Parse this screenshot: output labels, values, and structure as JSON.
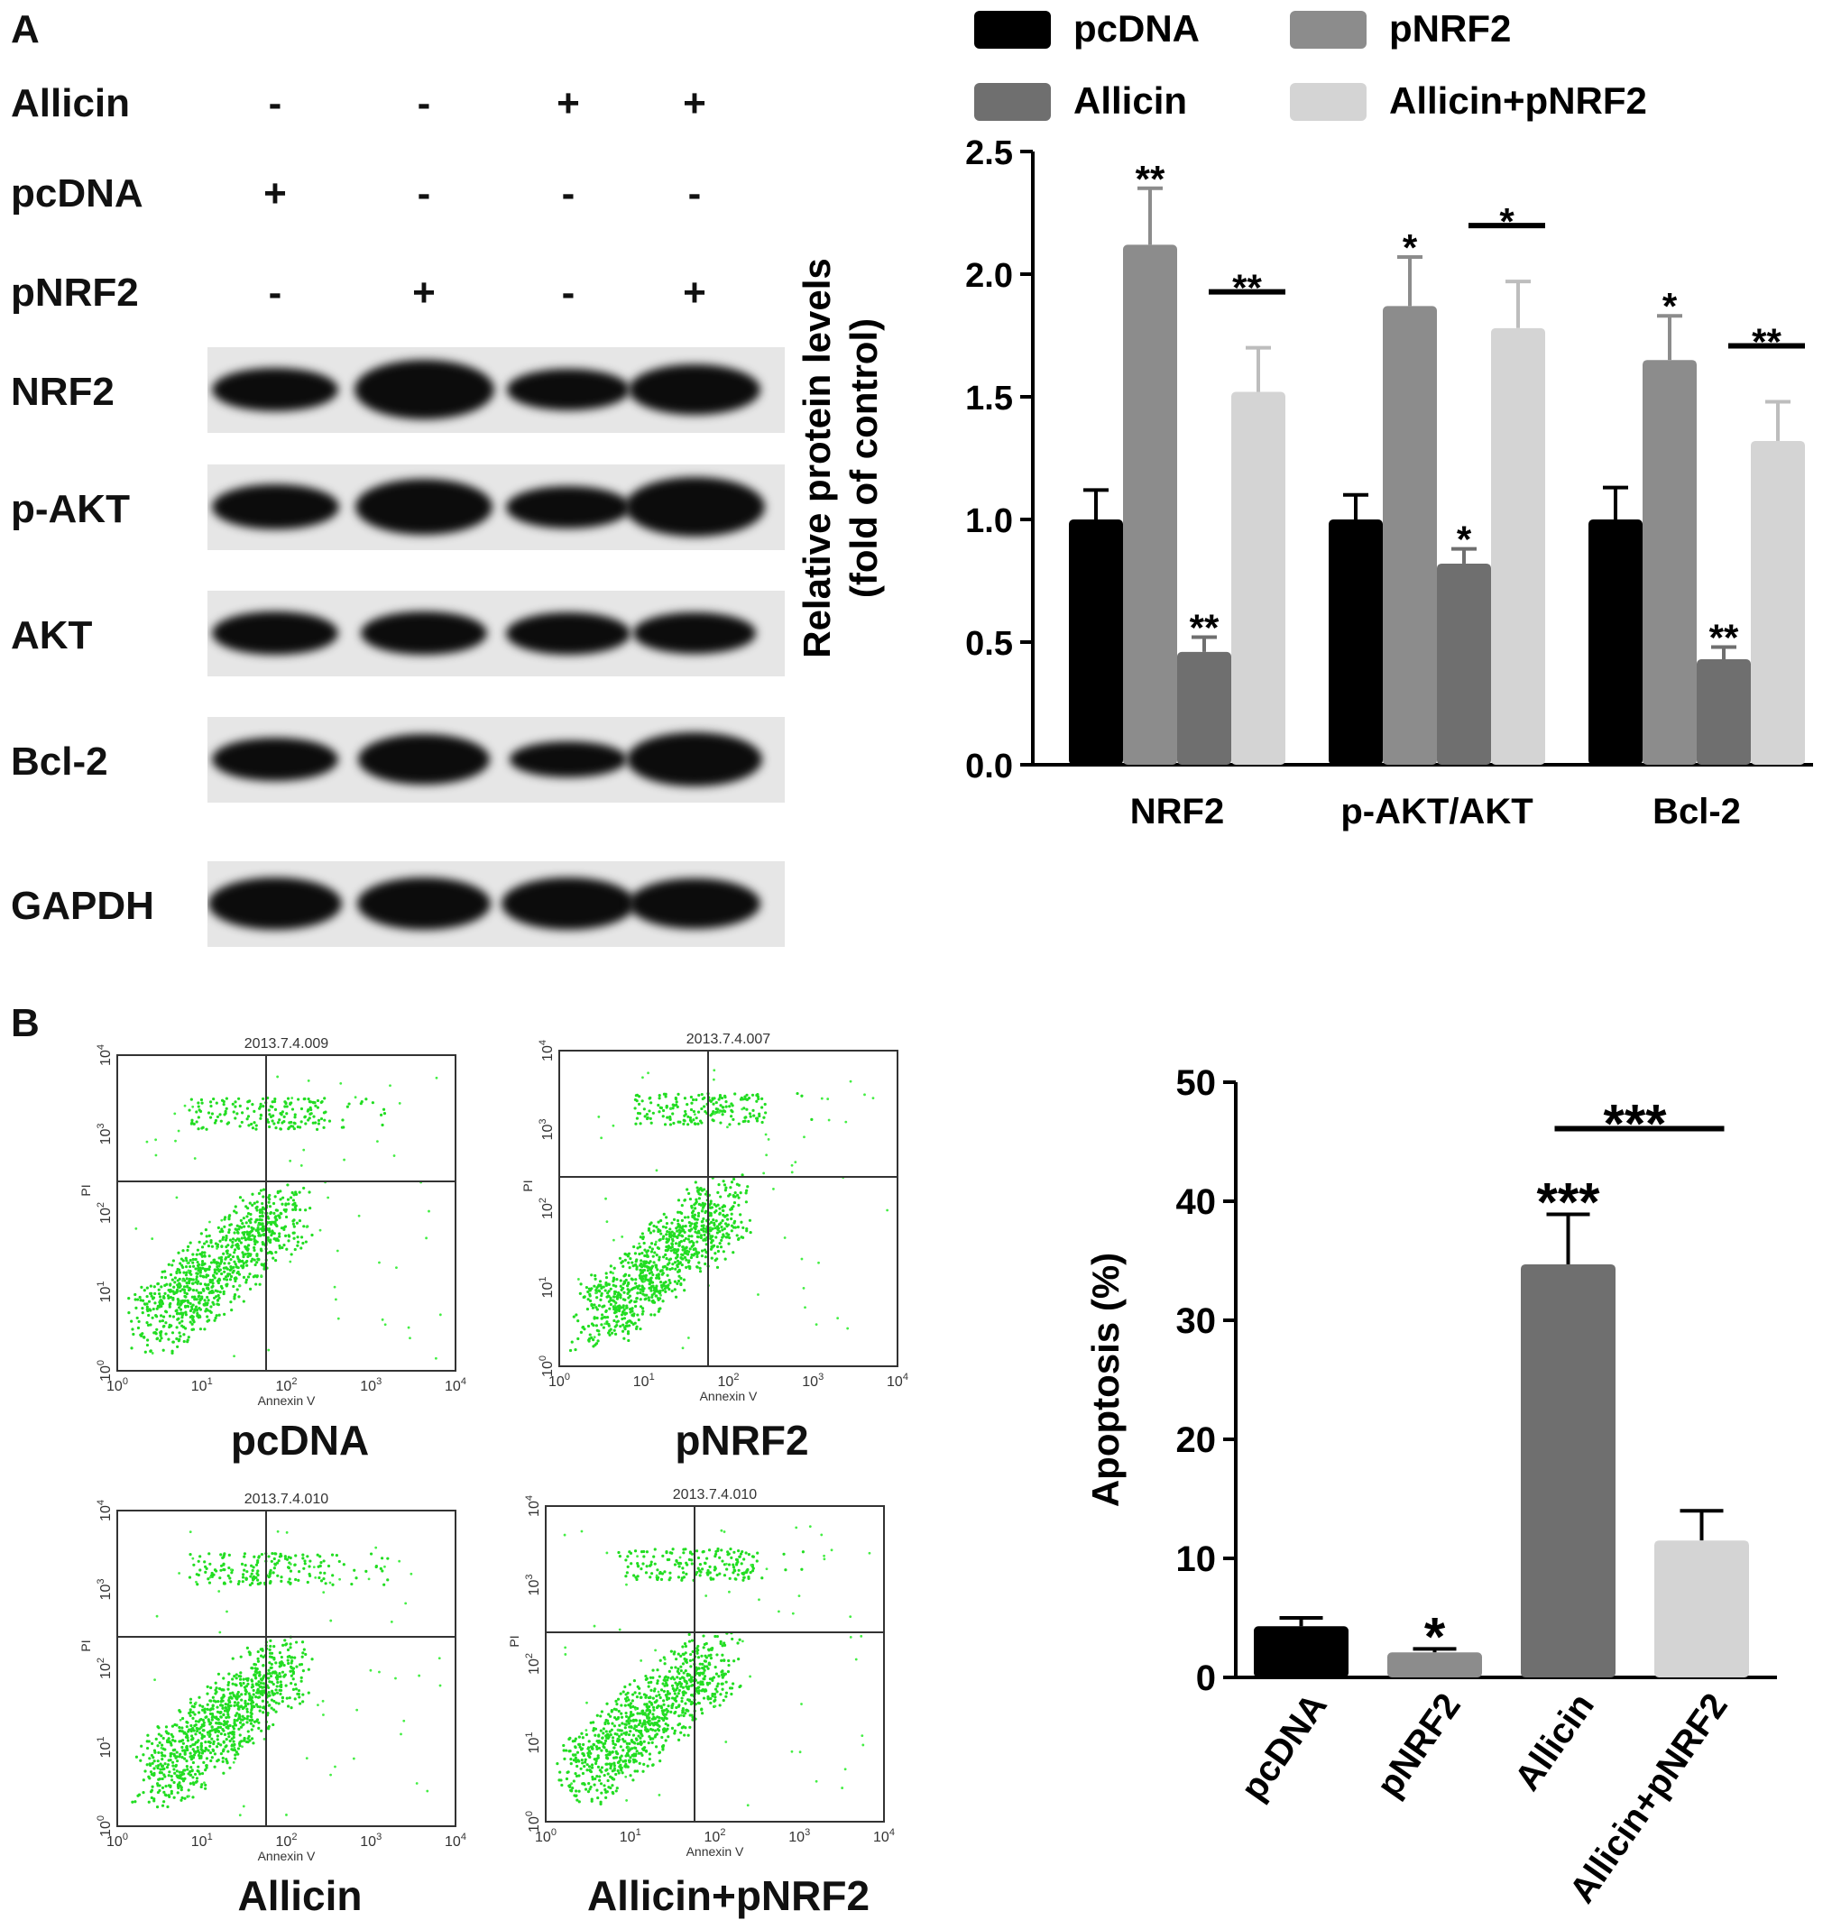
{
  "panel_a": {
    "letter": "A",
    "treatment_rows": [
      {
        "label": "Allicin",
        "signs": [
          "-",
          "-",
          "+",
          "+"
        ]
      },
      {
        "label": "pcDNA",
        "signs": [
          "+",
          "-",
          "-",
          "-"
        ]
      },
      {
        "label": "pNRF2",
        "signs": [
          "-",
          "+",
          "-",
          "+"
        ]
      }
    ],
    "blot_rows": [
      {
        "label": "NRF2",
        "intensity": [
          0.55,
          1.0,
          0.45,
          0.75
        ]
      },
      {
        "label": "p-AKT",
        "intensity": [
          0.6,
          0.9,
          0.5,
          1.0
        ]
      },
      {
        "label": "AKT",
        "intensity": [
          0.55,
          0.55,
          0.5,
          0.45
        ]
      },
      {
        "label": "Bcl-2",
        "intensity": [
          0.55,
          0.75,
          0.3,
          0.85
        ]
      },
      {
        "label": "GAPDH",
        "intensity": [
          0.8,
          0.8,
          0.8,
          0.75
        ]
      }
    ]
  },
  "panel_b": {
    "letter": "B",
    "flow_plots": [
      {
        "label": "pcDNA",
        "file": "2013.7.4.009"
      },
      {
        "label": "pNRF2",
        "file": "2013.7.4.007"
      },
      {
        "label": "Allicin",
        "file": "2013.7.4.010"
      },
      {
        "label": "Allicin+pNRF2",
        "file": "2013.7.4.010"
      }
    ],
    "flow_axis": {
      "xlabel": "Annexin V",
      "ylabel": "PI",
      "ticks": [
        "10",
        "10",
        "10",
        "10",
        "10"
      ],
      "exponents": [
        "0",
        "1",
        "2",
        "3",
        "4"
      ]
    }
  },
  "chart_data": [
    {
      "type": "bar",
      "ylabel": "Relative protein levels\n(fold of control)",
      "ylabel_lines": [
        "Relative protein levels",
        "(fold of control)"
      ],
      "categories": [
        "NRF2",
        "p-AKT/AKT",
        "Bcl-2"
      ],
      "ylim": [
        0,
        2.5
      ],
      "yticks": [
        "0.0",
        "0.5",
        "1.0",
        "1.5",
        "2.0",
        "2.5"
      ],
      "legend_position": "top",
      "series": [
        {
          "name": "pcDNA",
          "color": "#000000",
          "values": [
            1.0,
            1.0,
            1.0
          ],
          "errors": [
            0.12,
            0.1,
            0.13
          ]
        },
        {
          "name": "pNRF2",
          "color": "#8c8c8c",
          "values": [
            2.12,
            1.87,
            1.65
          ],
          "errors": [
            0.23,
            0.2,
            0.18
          ]
        },
        {
          "name": "Allicin",
          "color": "#6f6f6f",
          "values": [
            0.46,
            0.82,
            0.43
          ],
          "errors": [
            0.06,
            0.06,
            0.05
          ]
        },
        {
          "name": "Allicin+pNRF2",
          "color": "#d4d4d4",
          "values": [
            1.52,
            1.78,
            1.32
          ],
          "errors": [
            0.18,
            0.19,
            0.16
          ]
        }
      ],
      "annotations": [
        {
          "category": 0,
          "series": 1,
          "text": "**"
        },
        {
          "category": 0,
          "series": 2,
          "text": "**"
        },
        {
          "category": 0,
          "series": 3,
          "text": "**",
          "bracket": true
        },
        {
          "category": 1,
          "series": 1,
          "text": "*"
        },
        {
          "category": 1,
          "series": 2,
          "text": "*"
        },
        {
          "category": 1,
          "series": 3,
          "text": "*",
          "bracket": true
        },
        {
          "category": 2,
          "series": 1,
          "text": "*"
        },
        {
          "category": 2,
          "series": 2,
          "text": "**"
        },
        {
          "category": 2,
          "series": 3,
          "text": "**",
          "bracket": true
        }
      ]
    },
    {
      "type": "bar",
      "ylabel": "Apoptosis (%)",
      "categories": [
        "pcDNA",
        "pNRF2",
        "Allicin",
        "Allicin+pNRF2"
      ],
      "ylim": [
        0,
        50
      ],
      "yticks": [
        "0",
        "10",
        "20",
        "30",
        "40",
        "50"
      ],
      "values": [
        4.3,
        2.1,
        34.7,
        11.5
      ],
      "errors": [
        0.7,
        0.3,
        4.2,
        2.5
      ],
      "colors": [
        "#000000",
        "#8c8c8c",
        "#6f6f6f",
        "#d4d4d4"
      ],
      "annotations": [
        {
          "bar": 1,
          "text": "*"
        },
        {
          "bar": 2,
          "text": "***"
        },
        {
          "bar": 3,
          "text": "***",
          "bracket_from": 2
        }
      ]
    }
  ]
}
